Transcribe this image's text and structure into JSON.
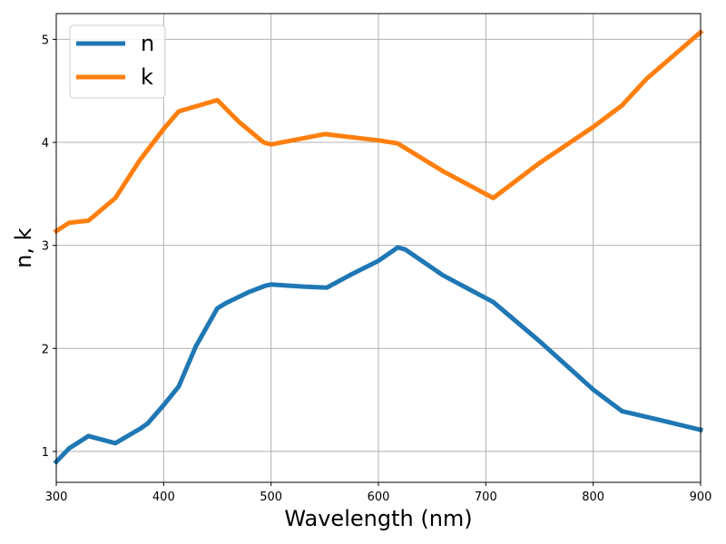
{
  "chart_data": {
    "type": "line",
    "xlabel": "Wavelength (nm)",
    "ylabel": "n, k",
    "xlim": [
      300,
      900
    ],
    "ylim": [
      0.7,
      5.25
    ],
    "xticks": [
      300,
      400,
      500,
      600,
      700,
      800,
      900
    ],
    "yticks": [
      1,
      2,
      3,
      4,
      5
    ],
    "grid": true,
    "legend_position": "top-left",
    "series": [
      {
        "name": "n",
        "color": "#1f77b4",
        "points": [
          [
            300,
            0.9
          ],
          [
            312,
            1.03
          ],
          [
            330,
            1.15
          ],
          [
            355,
            1.08
          ],
          [
            378,
            1.22
          ],
          [
            385,
            1.27
          ],
          [
            400,
            1.45
          ],
          [
            414,
            1.63
          ],
          [
            430,
            2.02
          ],
          [
            450,
            2.39
          ],
          [
            458,
            2.44
          ],
          [
            480,
            2.55
          ],
          [
            495,
            2.61
          ],
          [
            500,
            2.62
          ],
          [
            530,
            2.6
          ],
          [
            552,
            2.59
          ],
          [
            575,
            2.72
          ],
          [
            600,
            2.85
          ],
          [
            618,
            2.98
          ],
          [
            625,
            2.96
          ],
          [
            660,
            2.71
          ],
          [
            707,
            2.45
          ],
          [
            750,
            2.07
          ],
          [
            800,
            1.6
          ],
          [
            827,
            1.39
          ],
          [
            860,
            1.31
          ],
          [
            900,
            1.21
          ]
        ]
      },
      {
        "name": "k",
        "color": "#ff7f0e",
        "points": [
          [
            300,
            3.14
          ],
          [
            312,
            3.22
          ],
          [
            330,
            3.24
          ],
          [
            355,
            3.46
          ],
          [
            378,
            3.83
          ],
          [
            400,
            4.13
          ],
          [
            414,
            4.3
          ],
          [
            450,
            4.41
          ],
          [
            470,
            4.2
          ],
          [
            493,
            4.0
          ],
          [
            500,
            3.98
          ],
          [
            550,
            4.08
          ],
          [
            600,
            4.02
          ],
          [
            618,
            3.99
          ],
          [
            660,
            3.72
          ],
          [
            707,
            3.46
          ],
          [
            750,
            3.8
          ],
          [
            800,
            4.15
          ],
          [
            827,
            4.36
          ],
          [
            850,
            4.62
          ],
          [
            900,
            5.07
          ]
        ]
      }
    ]
  }
}
